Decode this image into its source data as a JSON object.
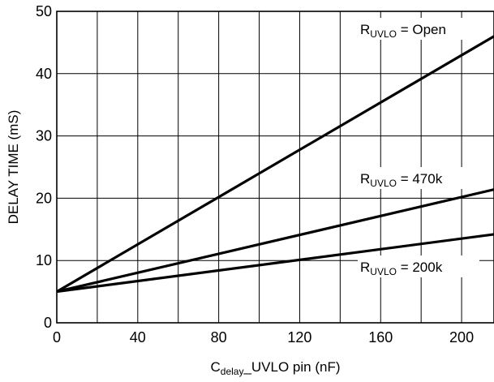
{
  "chart_data": {
    "type": "line",
    "title": "",
    "xlabel_main": "C",
    "xlabel_sub": "delay",
    "xlabel_rest": "_UVLO pin (nF)",
    "ylabel": "DELAY TIME (mS)",
    "xlim": [
      0,
      216
    ],
    "ylim": [
      0,
      50
    ],
    "x_ticks": [
      0,
      40,
      80,
      120,
      160,
      200
    ],
    "y_ticks": [
      0,
      10,
      20,
      30,
      40,
      50
    ],
    "x_gridlines": [
      0,
      20,
      40,
      60,
      80,
      100,
      120,
      140,
      160,
      180,
      200
    ],
    "y_gridlines": [
      0,
      10,
      20,
      30,
      40,
      50
    ],
    "grid": true,
    "series": [
      {
        "name_main": "R",
        "name_sub": "UVLO",
        "name_rest": " = Open",
        "x": [
          0,
          216
        ],
        "y": [
          5,
          46
        ]
      },
      {
        "name_main": "R",
        "name_sub": "UVLO",
        "name_rest": " = 470k",
        "x": [
          0,
          216
        ],
        "y": [
          5,
          21.4
        ]
      },
      {
        "name_main": "R",
        "name_sub": "UVLO",
        "name_rest": " = 200k",
        "x": [
          0,
          216
        ],
        "y": [
          5,
          14.2
        ]
      }
    ]
  }
}
